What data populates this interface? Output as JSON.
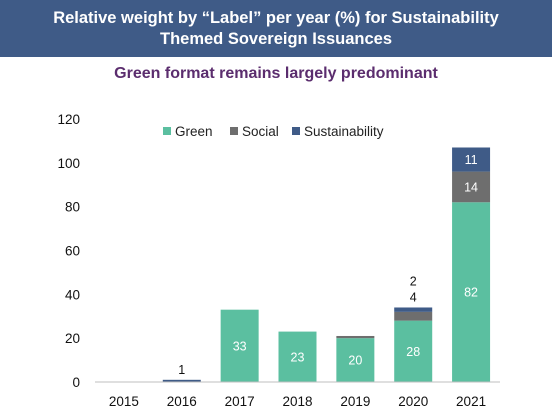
{
  "header": {
    "title_line1": "Relative weight by “Label” per year (%) for Sustainability",
    "title_line2": "Themed Sovereign Issuances"
  },
  "subtitle": "Green format remains largely predominant",
  "chart_data": {
    "type": "bar",
    "stacked": true,
    "categories": [
      "2015",
      "2016",
      "2017",
      "2018",
      "2019",
      "2020",
      "2021"
    ],
    "series": [
      {
        "name": "Green",
        "color": "#5bbfa0",
        "values": [
          0,
          0,
          33,
          23,
          20,
          28,
          82
        ],
        "labels": [
          "",
          "",
          "33",
          "23",
          "20",
          "28",
          "82"
        ]
      },
      {
        "name": "Social",
        "color": "#6e6e6e",
        "values": [
          0,
          0,
          0,
          0,
          1,
          4,
          14
        ],
        "labels": [
          "",
          "",
          "",
          "",
          "",
          "4",
          "14"
        ]
      },
      {
        "name": "Sustainability",
        "color": "#3f5b87",
        "values": [
          0,
          1,
          0,
          0,
          0,
          2,
          11
        ],
        "labels": [
          "",
          "1",
          "",
          "",
          "",
          "2",
          "11"
        ]
      }
    ],
    "ylim": [
      0,
      120
    ],
    "yticks": [
      "0",
      "20",
      "40",
      "60",
      "80",
      "100",
      "120"
    ],
    "legend_position": "top",
    "grid": false,
    "xlabel": "",
    "ylabel": ""
  }
}
